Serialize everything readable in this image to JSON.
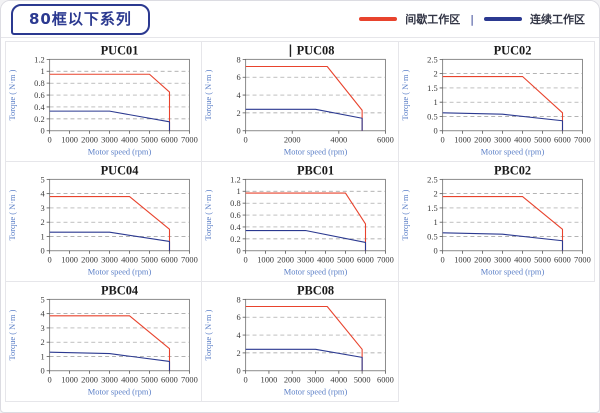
{
  "page": {
    "title_badge": "80框以下系列"
  },
  "legend": {
    "separator": "|",
    "items": [
      {
        "name": "intermittent-work-zone",
        "label": "间歇工作区",
        "color": "#e8432d"
      },
      {
        "name": "continuous-work-zone",
        "label": "连续工作区",
        "color": "#2b3990"
      }
    ]
  },
  "colors": {
    "accent_navy": "#2b3990",
    "accent_red": "#e8432d",
    "axis_label_blue": "#5b7fc7",
    "grid_dash": "#9a9a9a",
    "plot_border": "#7d7d7d",
    "cell_border": "#e6e6ea"
  },
  "axis_labels": {
    "x": "Motor speed (rpm)",
    "y": "Torque ( N·m )"
  },
  "chart_data": [
    {
      "type": "line",
      "title": "PUC01",
      "cursor_before_title": false,
      "xlabel": "Motor speed (rpm)",
      "ylabel": "Torque ( N·m )",
      "xlim": [
        0,
        7000
      ],
      "ylim": [
        0,
        1.2
      ],
      "xticks": [
        0,
        1000,
        2000,
        3000,
        4000,
        5000,
        6000,
        7000
      ],
      "yticks": [
        0,
        0.2,
        0.4,
        0.6,
        0.8,
        1,
        1.2
      ],
      "grid": "horizontal-dashed",
      "legend_position": "none",
      "series": [
        {
          "name": "间歇工作区",
          "color": "#e8432d",
          "points": [
            [
              0,
              0.95
            ],
            [
              5000,
              0.95
            ],
            [
              6000,
              0.65
            ],
            [
              6000,
              0
            ]
          ]
        },
        {
          "name": "连续工作区",
          "color": "#2b3990",
          "points": [
            [
              0,
              0.33
            ],
            [
              3000,
              0.33
            ],
            [
              6000,
              0.15
            ],
            [
              6000,
              0
            ]
          ]
        }
      ]
    },
    {
      "type": "line",
      "title": "PUC08",
      "cursor_before_title": true,
      "xlabel": "Motor speed (rpm)",
      "ylabel": "Torque ( N·m )",
      "xlim": [
        0,
        6000
      ],
      "ylim": [
        0,
        8
      ],
      "xticks": [
        0,
        2000,
        4000,
        6000
      ],
      "yticks": [
        0,
        2,
        4,
        6,
        8
      ],
      "grid": "horizontal-dashed",
      "legend_position": "none",
      "series": [
        {
          "name": "间歇工作区",
          "color": "#e8432d",
          "points": [
            [
              0,
              7.2
            ],
            [
              3500,
              7.2
            ],
            [
              5000,
              2.3
            ],
            [
              5000,
              0
            ]
          ]
        },
        {
          "name": "连续工作区",
          "color": "#2b3990",
          "points": [
            [
              0,
              2.4
            ],
            [
              3000,
              2.4
            ],
            [
              5000,
              1.4
            ],
            [
              5000,
              0
            ]
          ]
        }
      ]
    },
    {
      "type": "line",
      "title": "PUC02",
      "cursor_before_title": false,
      "xlabel": "Motor speed (rpm)",
      "ylabel": "Torque ( N·m )",
      "xlim": [
        0,
        7000
      ],
      "ylim": [
        0,
        2.5
      ],
      "xticks": [
        0,
        1000,
        2000,
        3000,
        4000,
        5000,
        6000,
        7000
      ],
      "yticks": [
        0,
        0.5,
        1,
        1.5,
        2,
        2.5
      ],
      "grid": "horizontal-dashed",
      "legend_position": "none",
      "series": [
        {
          "name": "间歇工作区",
          "color": "#e8432d",
          "points": [
            [
              0,
              1.9
            ],
            [
              4000,
              1.9
            ],
            [
              6000,
              0.63
            ],
            [
              6000,
              0
            ]
          ]
        },
        {
          "name": "连续工作区",
          "color": "#2b3990",
          "points": [
            [
              0,
              0.63
            ],
            [
              3000,
              0.58
            ],
            [
              6000,
              0.35
            ],
            [
              6000,
              0
            ]
          ]
        }
      ]
    },
    {
      "type": "line",
      "title": "PUC04",
      "cursor_before_title": false,
      "xlabel": "Motor speed (rpm)",
      "ylabel": "Torque ( N·m )",
      "xlim": [
        0,
        7000
      ],
      "ylim": [
        0,
        5
      ],
      "xticks": [
        0,
        1000,
        2000,
        3000,
        4000,
        5000,
        6000,
        7000
      ],
      "yticks": [
        0,
        1,
        2,
        3,
        4,
        5
      ],
      "grid": "horizontal-dashed",
      "legend_position": "none",
      "series": [
        {
          "name": "间歇工作区",
          "color": "#e8432d",
          "points": [
            [
              0,
              3.8
            ],
            [
              4000,
              3.8
            ],
            [
              6000,
              1.5
            ],
            [
              6000,
              0
            ]
          ]
        },
        {
          "name": "连续工作区",
          "color": "#2b3990",
          "points": [
            [
              0,
              1.3
            ],
            [
              3000,
              1.3
            ],
            [
              6000,
              0.65
            ],
            [
              6000,
              0
            ]
          ]
        }
      ]
    },
    {
      "type": "line",
      "title": "PBC01",
      "cursor_before_title": false,
      "xlabel": "Motor speed (rpm)",
      "ylabel": "Torque ( N·m )",
      "xlim": [
        0,
        7000
      ],
      "ylim": [
        0,
        1.2
      ],
      "xticks": [
        0,
        1000,
        2000,
        3000,
        4000,
        5000,
        6000,
        7000
      ],
      "yticks": [
        0,
        0.2,
        0.4,
        0.6,
        0.8,
        1,
        1.2
      ],
      "grid": "horizontal-dashed",
      "legend_position": "none",
      "series": [
        {
          "name": "间歇工作区",
          "color": "#e8432d",
          "points": [
            [
              0,
              0.97
            ],
            [
              5000,
              0.97
            ],
            [
              6000,
              0.45
            ],
            [
              6000,
              0
            ]
          ]
        },
        {
          "name": "连续工作区",
          "color": "#2b3990",
          "points": [
            [
              0,
              0.34
            ],
            [
              3000,
              0.34
            ],
            [
              6000,
              0.14
            ],
            [
              6000,
              0
            ]
          ]
        }
      ]
    },
    {
      "type": "line",
      "title": "PBC02",
      "cursor_before_title": false,
      "xlabel": "Motor speed (rpm)",
      "ylabel": "Torque ( N·m )",
      "xlim": [
        0,
        7000
      ],
      "ylim": [
        0,
        2.5
      ],
      "xticks": [
        0,
        1000,
        2000,
        3000,
        4000,
        5000,
        6000,
        7000
      ],
      "yticks": [
        0,
        0.5,
        1,
        1.5,
        2,
        2.5
      ],
      "grid": "horizontal-dashed",
      "legend_position": "none",
      "series": [
        {
          "name": "间歇工作区",
          "color": "#e8432d",
          "points": [
            [
              0,
              1.9
            ],
            [
              4000,
              1.9
            ],
            [
              6000,
              0.75
            ],
            [
              6000,
              0
            ]
          ]
        },
        {
          "name": "连续工作区",
          "color": "#2b3990",
          "points": [
            [
              0,
              0.63
            ],
            [
              3000,
              0.58
            ],
            [
              6000,
              0.35
            ],
            [
              6000,
              0
            ]
          ]
        }
      ]
    },
    {
      "type": "line",
      "title": "PBC04",
      "cursor_before_title": false,
      "xlabel": "Motor speed (rpm)",
      "ylabel": "Torque ( N·m )",
      "xlim": [
        0,
        7000
      ],
      "ylim": [
        0,
        5
      ],
      "xticks": [
        0,
        1000,
        2000,
        3000,
        4000,
        5000,
        6000,
        7000
      ],
      "yticks": [
        0,
        1,
        2,
        3,
        4,
        5
      ],
      "grid": "horizontal-dashed",
      "legend_position": "none",
      "series": [
        {
          "name": "间歇工作区",
          "color": "#e8432d",
          "points": [
            [
              0,
              3.85
            ],
            [
              4000,
              3.85
            ],
            [
              6000,
              1.55
            ],
            [
              6000,
              0
            ]
          ]
        },
        {
          "name": "连续工作区",
          "color": "#2b3990",
          "points": [
            [
              0,
              1.3
            ],
            [
              3000,
              1.2
            ],
            [
              6000,
              0.65
            ],
            [
              6000,
              0
            ]
          ]
        }
      ]
    },
    {
      "type": "line",
      "title": "PBC08",
      "cursor_before_title": false,
      "xlabel": "Motor speed (rpm)",
      "ylabel": "Torque ( N·m )",
      "xlim": [
        0,
        6000
      ],
      "ylim": [
        0,
        8
      ],
      "xticks": [
        0,
        1000,
        2000,
        3000,
        4000,
        5000,
        6000
      ],
      "yticks": [
        0,
        2,
        4,
        6,
        8
      ],
      "grid": "horizontal-dashed",
      "legend_position": "none",
      "series": [
        {
          "name": "间歇工作区",
          "color": "#e8432d",
          "points": [
            [
              0,
              7.2
            ],
            [
              3500,
              7.2
            ],
            [
              5000,
              2.4
            ],
            [
              5000,
              0
            ]
          ]
        },
        {
          "name": "连续工作区",
          "color": "#2b3990",
          "points": [
            [
              0,
              2.4
            ],
            [
              3000,
              2.4
            ],
            [
              5000,
              1.5
            ],
            [
              5000,
              0
            ]
          ]
        }
      ]
    }
  ]
}
